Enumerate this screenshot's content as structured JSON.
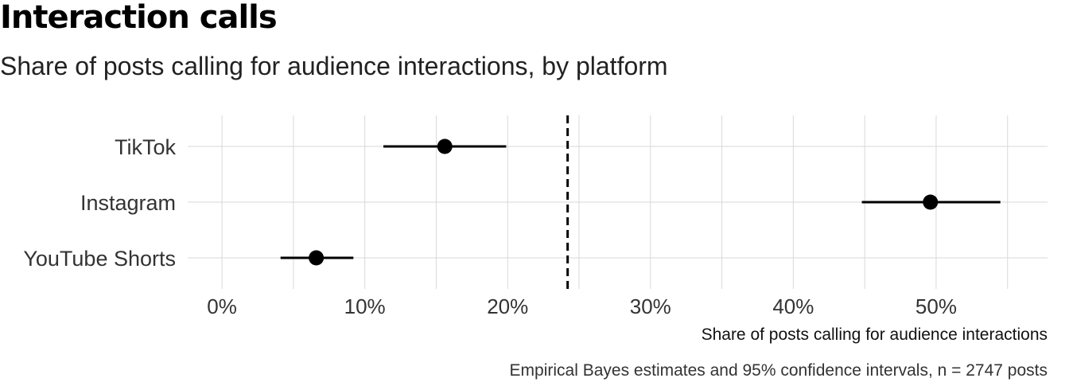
{
  "chart_data": {
    "type": "dot-interval",
    "title": "Interaction calls",
    "subtitle": "Share of posts calling for audience interactions, by platform",
    "xlabel": "Share of posts calling for audience interactions",
    "ylabel": "",
    "caption": "Empirical Bayes estimates and 95% confidence intervals, n = 2747 posts",
    "categories": [
      "TikTok",
      "Instagram",
      "YouTube Shorts"
    ],
    "estimates": [
      15.6,
      49.6,
      6.6
    ],
    "lower": [
      11.3,
      44.8,
      4.1
    ],
    "upper": [
      19.9,
      54.5,
      9.2
    ],
    "reference_line": 24.2,
    "xlim": [
      -2.4,
      57.8
    ],
    "xticks": [
      0,
      10,
      20,
      30,
      40,
      50
    ],
    "xtick_labels": [
      "0%",
      "10%",
      "20%",
      "30%",
      "40%",
      "50%"
    ],
    "grid": true,
    "legend": "none",
    "colors": {
      "points": "#000000",
      "intervals": "#000000",
      "reference_line": "#000000",
      "grid": "#d9d9d9"
    }
  }
}
